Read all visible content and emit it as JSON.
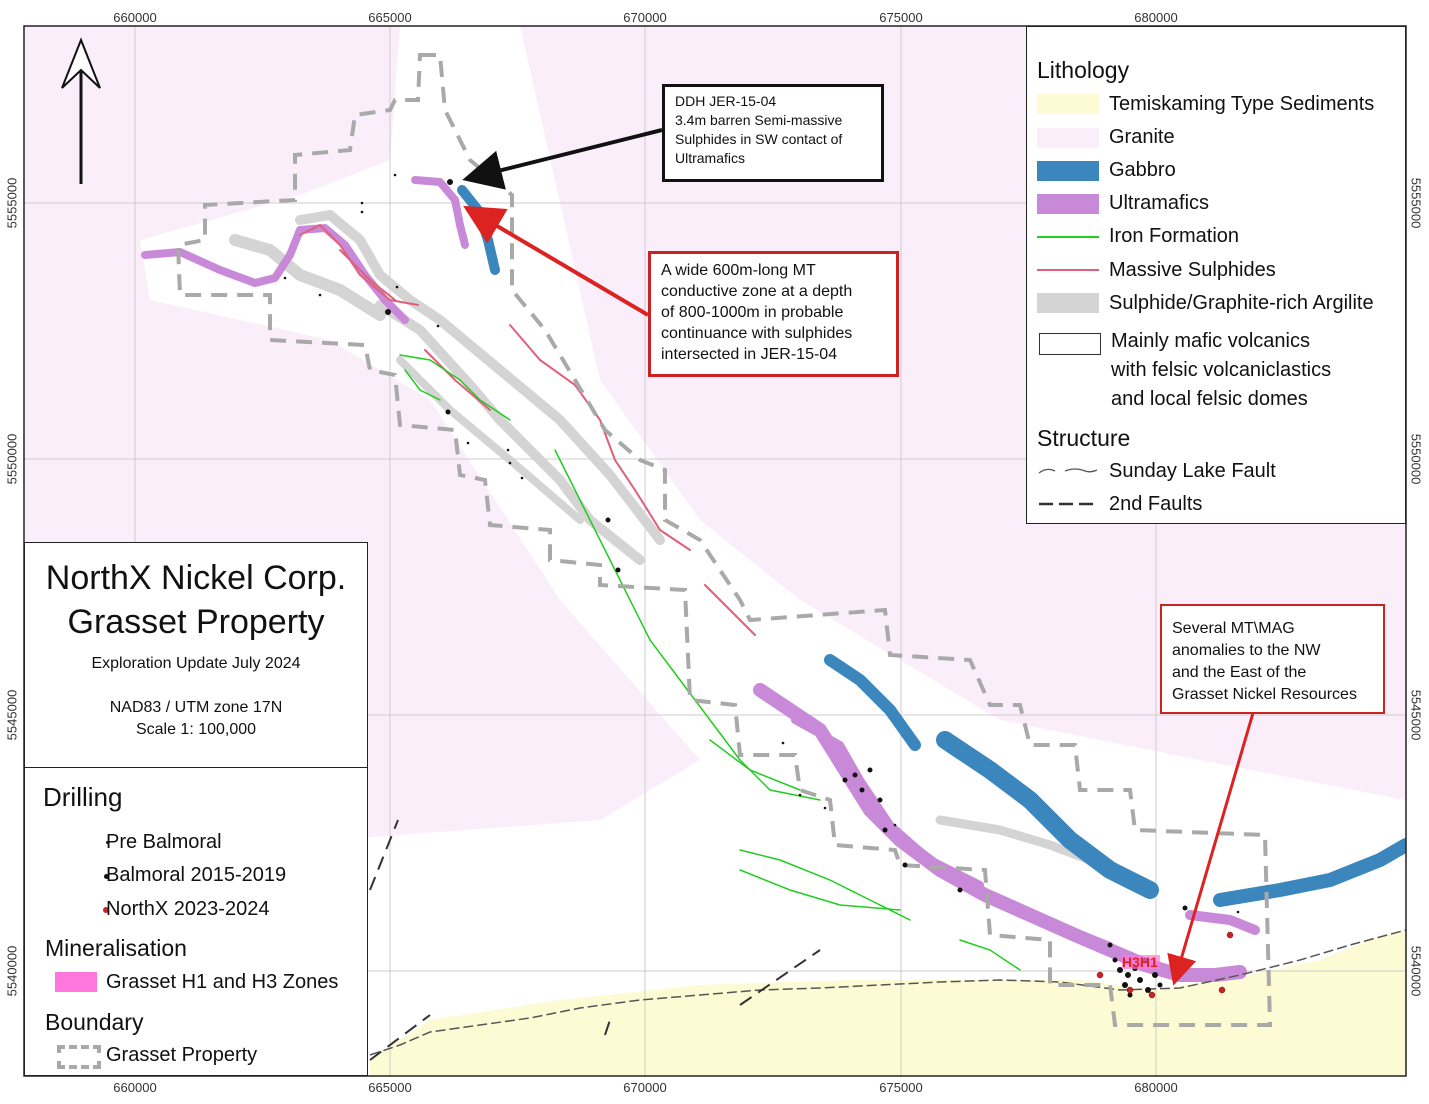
{
  "map": {
    "colors": {
      "granite": "#fbeefb",
      "sediments": "#fdfbd3",
      "volcanics": "#ffffff",
      "gabbro": "#3b87bd",
      "ultramafics": "#c989d9",
      "iron_formation": "#22cc22",
      "massive_sulphides": "#e0607a",
      "argilite": "#d4d4d4",
      "boundary": "#a9a9a9",
      "grid": "#cccccc",
      "h_zones": "#ff77dd",
      "northx_dots": "#cc2222",
      "red_arrow": "#dd2222"
    },
    "grid": {
      "eastings": [
        "660000",
        "665000",
        "670000",
        "675000",
        "680000"
      ],
      "northings": [
        "5555000",
        "5550000",
        "5545000",
        "5540000"
      ]
    },
    "zone_label": "H3H1"
  },
  "north_arrow": {
    "icon": "north-arrow-icon"
  },
  "title_block": {
    "line1": "NorthX Nickel Corp.",
    "line2": "Grasset Property",
    "line3": "Exploration Update July 2024",
    "line4": "NAD83 / UTM zone 17N",
    "line5": "Scale 1: 100,000"
  },
  "legend_left": {
    "drilling_title": "Drilling",
    "drilling_items": [
      "Pre Balmoral",
      "Balmoral 2015-2019",
      "NorthX 2023-2024"
    ],
    "mineralisation_title": "Mineralisation",
    "mineralisation_item": "Grasset H1 and H3 Zones",
    "boundary_title": "Boundary",
    "boundary_item": "Grasset Property"
  },
  "legend_right": {
    "lithology_title": "Lithology",
    "lithology_items": [
      "Temiskaming Type Sediments",
      "Granite",
      "Gabbro",
      "Ultramafics",
      "Iron Formation",
      "Massive Sulphides",
      "Sulphide/Graphite-rich Argilite"
    ],
    "volcanics_lines": [
      "Mainly mafic volcanics",
      "with felsic volcaniclastics",
      "and local felsic domes"
    ],
    "structure_title": "Structure",
    "structure_items": [
      "Sunday Lake Fault",
      "2nd Faults"
    ]
  },
  "callouts": {
    "ddh": [
      "DDH JER-15-04",
      "3.4m barren Semi-massive",
      "Sulphides in SW contact of",
      "Ultramafics"
    ],
    "mt_zone": [
      "A wide 600m-long MT",
      "conductive zone at a depth",
      "of 800-1000m in probable",
      "continuance with sulphides",
      "intersected in JER-15-04"
    ],
    "mt_mag": [
      "Several MT\\MAG",
      "anomalies to the NW",
      "and the East of the",
      "Grasset Nickel Resources"
    ]
  }
}
